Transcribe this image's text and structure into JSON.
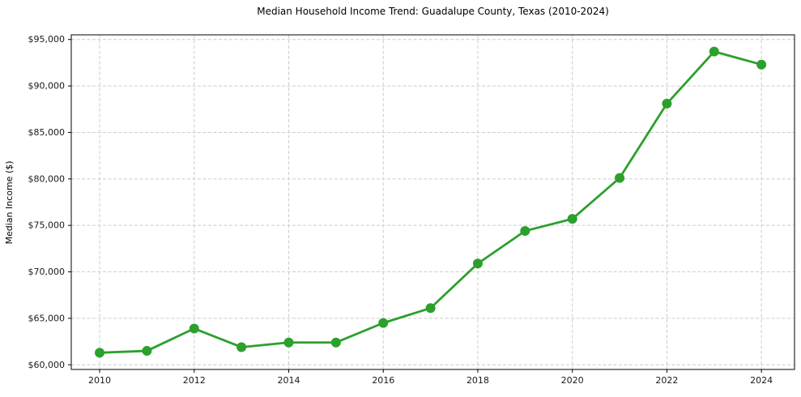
{
  "chart_data": {
    "type": "line",
    "title": "Median Household Income Trend: Guadalupe County, Texas (2010-2024)",
    "xlabel": "",
    "ylabel": "Median Income ($)",
    "x": [
      2010,
      2011,
      2012,
      2013,
      2014,
      2015,
      2016,
      2017,
      2018,
      2019,
      2020,
      2021,
      2022,
      2023,
      2024
    ],
    "series": [
      {
        "name": "Median Household Income",
        "values": [
          61300,
          61500,
          63900,
          61900,
          62400,
          62400,
          64500,
          66100,
          70900,
          74400,
          75700,
          80100,
          88100,
          93700,
          92300
        ],
        "color": "#2ca02c"
      }
    ],
    "xticks": [
      {
        "value": 2010,
        "label": "2010"
      },
      {
        "value": 2012,
        "label": "2012"
      },
      {
        "value": 2014,
        "label": "2014"
      },
      {
        "value": 2016,
        "label": "2016"
      },
      {
        "value": 2018,
        "label": "2018"
      },
      {
        "value": 2020,
        "label": "2020"
      },
      {
        "value": 2022,
        "label": "2022"
      },
      {
        "value": 2024,
        "label": "2024"
      }
    ],
    "yticks": [
      {
        "value": 60000,
        "label": "$60,000"
      },
      {
        "value": 65000,
        "label": "$65,000"
      },
      {
        "value": 70000,
        "label": "$70,000"
      },
      {
        "value": 75000,
        "label": "$75,000"
      },
      {
        "value": 80000,
        "label": "$80,000"
      },
      {
        "value": 85000,
        "label": "$85,000"
      },
      {
        "value": 90000,
        "label": "$90,000"
      },
      {
        "value": 95000,
        "label": "$95,000"
      }
    ],
    "xlim": [
      2009.4,
      2024.7
    ],
    "ylim": [
      59500,
      95500
    ],
    "grid": true,
    "grid_style": "dashed",
    "legend": false,
    "colors": {
      "line": "#2ca02c",
      "grid": "#cccccc",
      "spine": "#000000",
      "tick_text": "#1a1a1a",
      "background": "#ffffff"
    }
  }
}
